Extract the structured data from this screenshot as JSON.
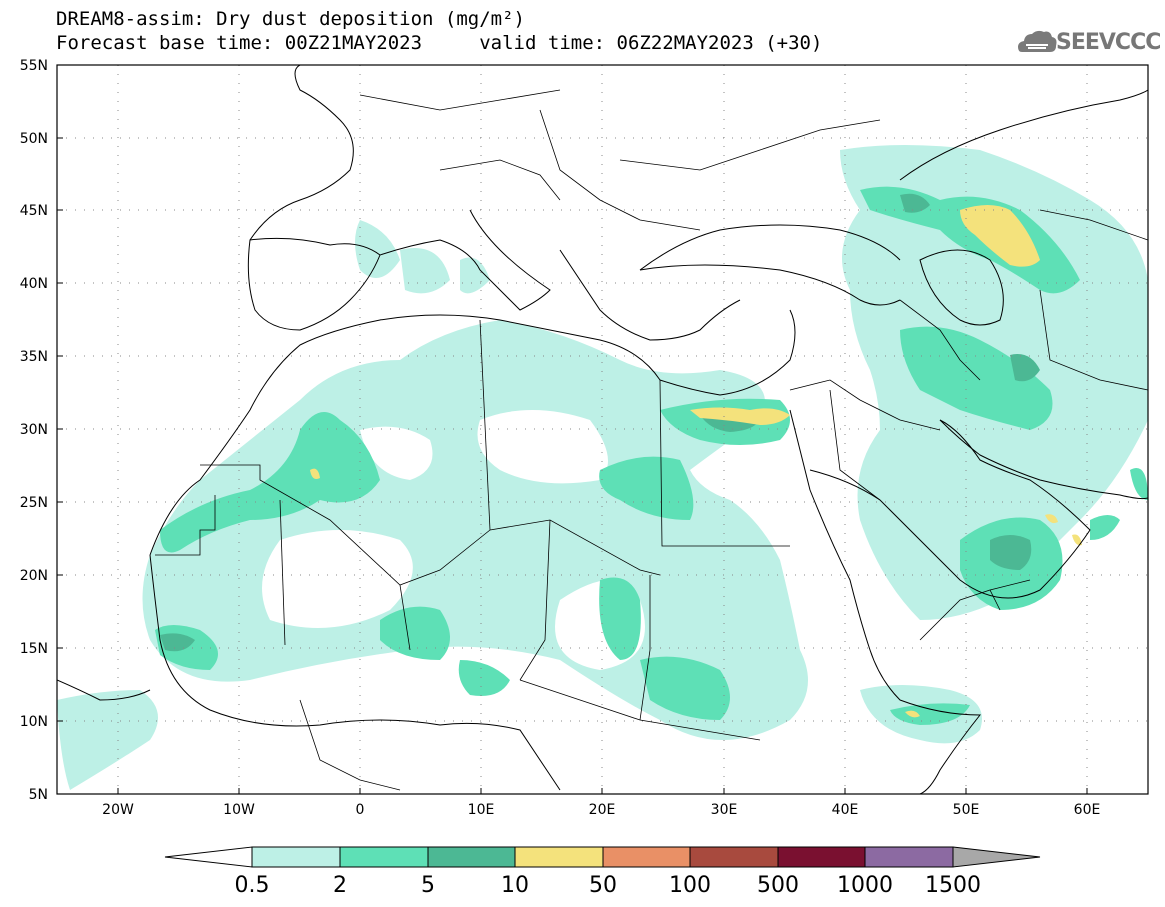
{
  "title": {
    "line1": "DREAM8-assim: Dry dust deposition (mg/m²)",
    "line2": "Forecast base time: 00Z21MAY2023     valid time: 06Z22MAY2023 (+30)"
  },
  "logo": {
    "text": "SEEVCCC",
    "icon": "cloud-icon"
  },
  "map": {
    "lon_range": [
      -25,
      65
    ],
    "lat_range": [
      5,
      55
    ],
    "lat_labels": [
      "5N",
      "10N",
      "15N",
      "20N",
      "25N",
      "30N",
      "35N",
      "40N",
      "45N",
      "50N",
      "55N"
    ],
    "lon_labels": [
      "20W",
      "10W",
      "0",
      "10E",
      "20E",
      "30E",
      "40E",
      "50E",
      "60E"
    ],
    "grid": "dotted"
  },
  "legend": {
    "labels": [
      "0.5",
      "2",
      "5",
      "10",
      "50",
      "100",
      "500",
      "1000",
      "1500"
    ],
    "colors": [
      "#ffffff",
      "#bdf0e6",
      "#5ee0b6",
      "#4cb894",
      "#f4e27c",
      "#e99066",
      "#a84a3e",
      "#7a1030",
      "#8c6aa2",
      "#a8a8a8"
    ]
  },
  "colors": {
    "land": "#ffffff",
    "border": "#000000",
    "level1": "#bdf0e6",
    "level2": "#5ee0b6",
    "level3": "#4cb894",
    "level4": "#f4e27c"
  }
}
